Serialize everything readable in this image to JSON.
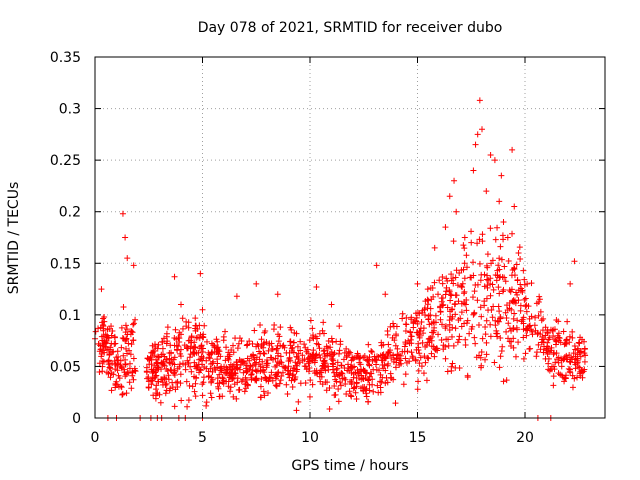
{
  "chart_data": {
    "type": "scatter",
    "title": "Day 078 of 2021, SRMTID for receiver dubo",
    "xlabel": "GPS time / hours",
    "ylabel": "SRMTID / TECUs",
    "xlim": [
      0,
      24
    ],
    "ylim": [
      0,
      0.35
    ],
    "grid": true,
    "marker": "+",
    "marker_color": "#ff0000",
    "xticks": [
      0,
      5,
      10,
      15,
      20
    ],
    "xtick_labels": [
      "0",
      "5",
      "10",
      "15",
      "20"
    ],
    "yticks": [
      0,
      0.05,
      0.1,
      0.15,
      0.2,
      0.25,
      0.3,
      0.35
    ],
    "ytick_labels": [
      "0",
      "0.05",
      "0.1",
      "0.15",
      "0.2",
      "0.25",
      "0.3",
      "0.35"
    ],
    "profile": [
      [
        0.0,
        0.075,
        0.02
      ],
      [
        0.5,
        0.07,
        0.02
      ],
      [
        1.0,
        0.05,
        0.02
      ],
      [
        1.5,
        0.06,
        0.025
      ],
      [
        2.5,
        0.045,
        0.015
      ],
      [
        3.0,
        0.045,
        0.02
      ],
      [
        4.0,
        0.06,
        0.025
      ],
      [
        5.0,
        0.06,
        0.025
      ],
      [
        6.0,
        0.045,
        0.018
      ],
      [
        7.0,
        0.05,
        0.018
      ],
      [
        8.0,
        0.055,
        0.02
      ],
      [
        9.0,
        0.055,
        0.02
      ],
      [
        10.0,
        0.06,
        0.022
      ],
      [
        11.0,
        0.05,
        0.02
      ],
      [
        12.0,
        0.045,
        0.018
      ],
      [
        13.0,
        0.045,
        0.02
      ],
      [
        14.0,
        0.065,
        0.022
      ],
      [
        15.0,
        0.08,
        0.025
      ],
      [
        16.0,
        0.09,
        0.03
      ],
      [
        17.0,
        0.115,
        0.04
      ],
      [
        18.0,
        0.12,
        0.05
      ],
      [
        19.0,
        0.11,
        0.045
      ],
      [
        20.0,
        0.1,
        0.03
      ],
      [
        21.0,
        0.07,
        0.02
      ],
      [
        22.0,
        0.06,
        0.02
      ],
      [
        22.8,
        0.06,
        0.02
      ]
    ],
    "outliers": [
      [
        0.3,
        0.125
      ],
      [
        1.3,
        0.198
      ],
      [
        1.4,
        0.175
      ],
      [
        1.5,
        0.155
      ],
      [
        1.8,
        0.148
      ],
      [
        3.7,
        0.137
      ],
      [
        4.0,
        0.11
      ],
      [
        4.9,
        0.14
      ],
      [
        5.0,
        0.105
      ],
      [
        6.6,
        0.118
      ],
      [
        7.5,
        0.13
      ],
      [
        8.5,
        0.12
      ],
      [
        10.3,
        0.127
      ],
      [
        11.0,
        0.11
      ],
      [
        13.1,
        0.148
      ],
      [
        13.5,
        0.12
      ],
      [
        15.0,
        0.13
      ],
      [
        15.8,
        0.165
      ],
      [
        16.3,
        0.185
      ],
      [
        16.5,
        0.215
      ],
      [
        16.7,
        0.23
      ],
      [
        16.8,
        0.2
      ],
      [
        17.2,
        0.175
      ],
      [
        17.5,
        0.17
      ],
      [
        17.6,
        0.24
      ],
      [
        17.7,
        0.265
      ],
      [
        17.8,
        0.275
      ],
      [
        17.9,
        0.308
      ],
      [
        18.0,
        0.28
      ],
      [
        18.2,
        0.22
      ],
      [
        18.4,
        0.255
      ],
      [
        18.6,
        0.25
      ],
      [
        18.8,
        0.21
      ],
      [
        18.9,
        0.235
      ],
      [
        19.0,
        0.19
      ],
      [
        19.2,
        0.175
      ],
      [
        19.4,
        0.26
      ],
      [
        19.5,
        0.205
      ],
      [
        19.7,
        0.16
      ],
      [
        20.1,
        0.13
      ],
      [
        22.1,
        0.13
      ],
      [
        22.3,
        0.152
      ]
    ],
    "zero_points": [
      0.6,
      1.0,
      2.1,
      2.6,
      2.9,
      3.1,
      3.9,
      4.2,
      5.0,
      20.6,
      21.2
    ]
  }
}
